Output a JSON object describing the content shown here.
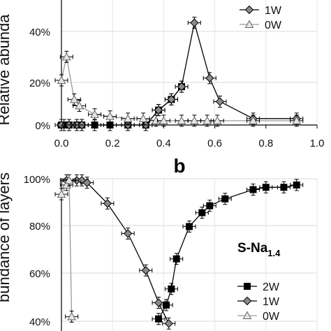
{
  "chart_data": [
    {
      "type": "scatter",
      "panel_label": "",
      "ylabel": "Relative abunda",
      "xlim": [
        0.0,
        1.0
      ],
      "ylim": [
        0,
        60
      ],
      "y_ticks": [
        "0%",
        "20%",
        "40%"
      ],
      "x_ticks": [
        "0.0",
        "0.2",
        "0.4",
        "0.6",
        "0.8",
        "1.0"
      ],
      "grid": true,
      "legend": [
        "1W",
        "0W"
      ],
      "series": [
        {
          "name": "2W",
          "marker": "square",
          "points": [
            [
              0.0,
              0
            ],
            [
              0.01,
              0
            ],
            [
              0.03,
              0
            ],
            [
              0.06,
              0
            ],
            [
              0.08,
              0
            ],
            [
              0.13,
              0
            ],
            [
              0.19,
              0
            ],
            [
              0.26,
              0
            ],
            [
              0.33,
              0
            ],
            [
              0.38,
              7
            ],
            [
              0.43,
              12
            ],
            [
              0.47,
              18
            ]
          ]
        },
        {
          "name": "1W",
          "marker": "diamond",
          "points": [
            [
              0.0,
              0
            ],
            [
              0.03,
              0
            ],
            [
              0.06,
              0
            ],
            [
              0.08,
              0
            ],
            [
              0.26,
              0
            ],
            [
              0.33,
              0
            ],
            [
              0.38,
              7
            ],
            [
              0.43,
              12
            ],
            [
              0.47,
              18
            ],
            [
              0.52,
              48
            ],
            [
              0.58,
              22
            ],
            [
              0.62,
              11
            ],
            [
              0.75,
              3
            ],
            [
              0.92,
              3
            ]
          ]
        },
        {
          "name": "0W",
          "marker": "triangle",
          "points": [
            [
              0.0,
              21
            ],
            [
              0.02,
              32
            ],
            [
              0.05,
              12
            ],
            [
              0.07,
              9
            ],
            [
              0.13,
              5
            ],
            [
              0.19,
              4
            ],
            [
              0.26,
              3
            ],
            [
              0.32,
              3
            ],
            [
              0.37,
              2
            ],
            [
              0.4,
              2
            ],
            [
              0.47,
              2
            ],
            [
              0.52,
              2
            ],
            [
              0.57,
              2
            ],
            [
              0.61,
              2
            ],
            [
              0.75,
              2
            ],
            [
              0.92,
              2
            ]
          ]
        }
      ]
    },
    {
      "type": "scatter",
      "panel_label": "b",
      "ylabel": "bundance of layers",
      "annotation_main": "S-Na",
      "annotation_sub": "1.4",
      "ylim": [
        38,
        100
      ],
      "y_ticks": [
        "40%",
        "60%",
        "80%",
        "100%"
      ],
      "grid": true,
      "legend": [
        "2W",
        "1W",
        "0W"
      ],
      "series": [
        {
          "name": "2W",
          "marker": "square",
          "points": [
            [
              0.38,
              39
            ],
            [
              0.41,
              45
            ],
            [
              0.43,
              52
            ],
            [
              0.45,
              65
            ],
            [
              0.5,
              79
            ],
            [
              0.55,
              85
            ],
            [
              0.58,
              88
            ],
            [
              0.64,
              91
            ],
            [
              0.75,
              95
            ],
            [
              0.8,
              96
            ],
            [
              0.87,
              96
            ],
            [
              0.92,
              97
            ]
          ]
        },
        {
          "name": "1W",
          "marker": "diamond",
          "points": [
            [
              0.02,
              99
            ],
            [
              0.06,
              99
            ],
            [
              0.08,
              99
            ],
            [
              0.1,
              98
            ],
            [
              0.18,
              89
            ],
            [
              0.26,
              76
            ],
            [
              0.33,
              60
            ],
            [
              0.38,
              46
            ],
            [
              0.42,
              37
            ]
          ]
        },
        {
          "name": "0W",
          "marker": "triangle",
          "points": [
            [
              0.0,
              93
            ],
            [
              0.02,
              97
            ],
            [
              0.03,
              99
            ],
            [
              0.04,
              40
            ]
          ]
        }
      ]
    }
  ]
}
